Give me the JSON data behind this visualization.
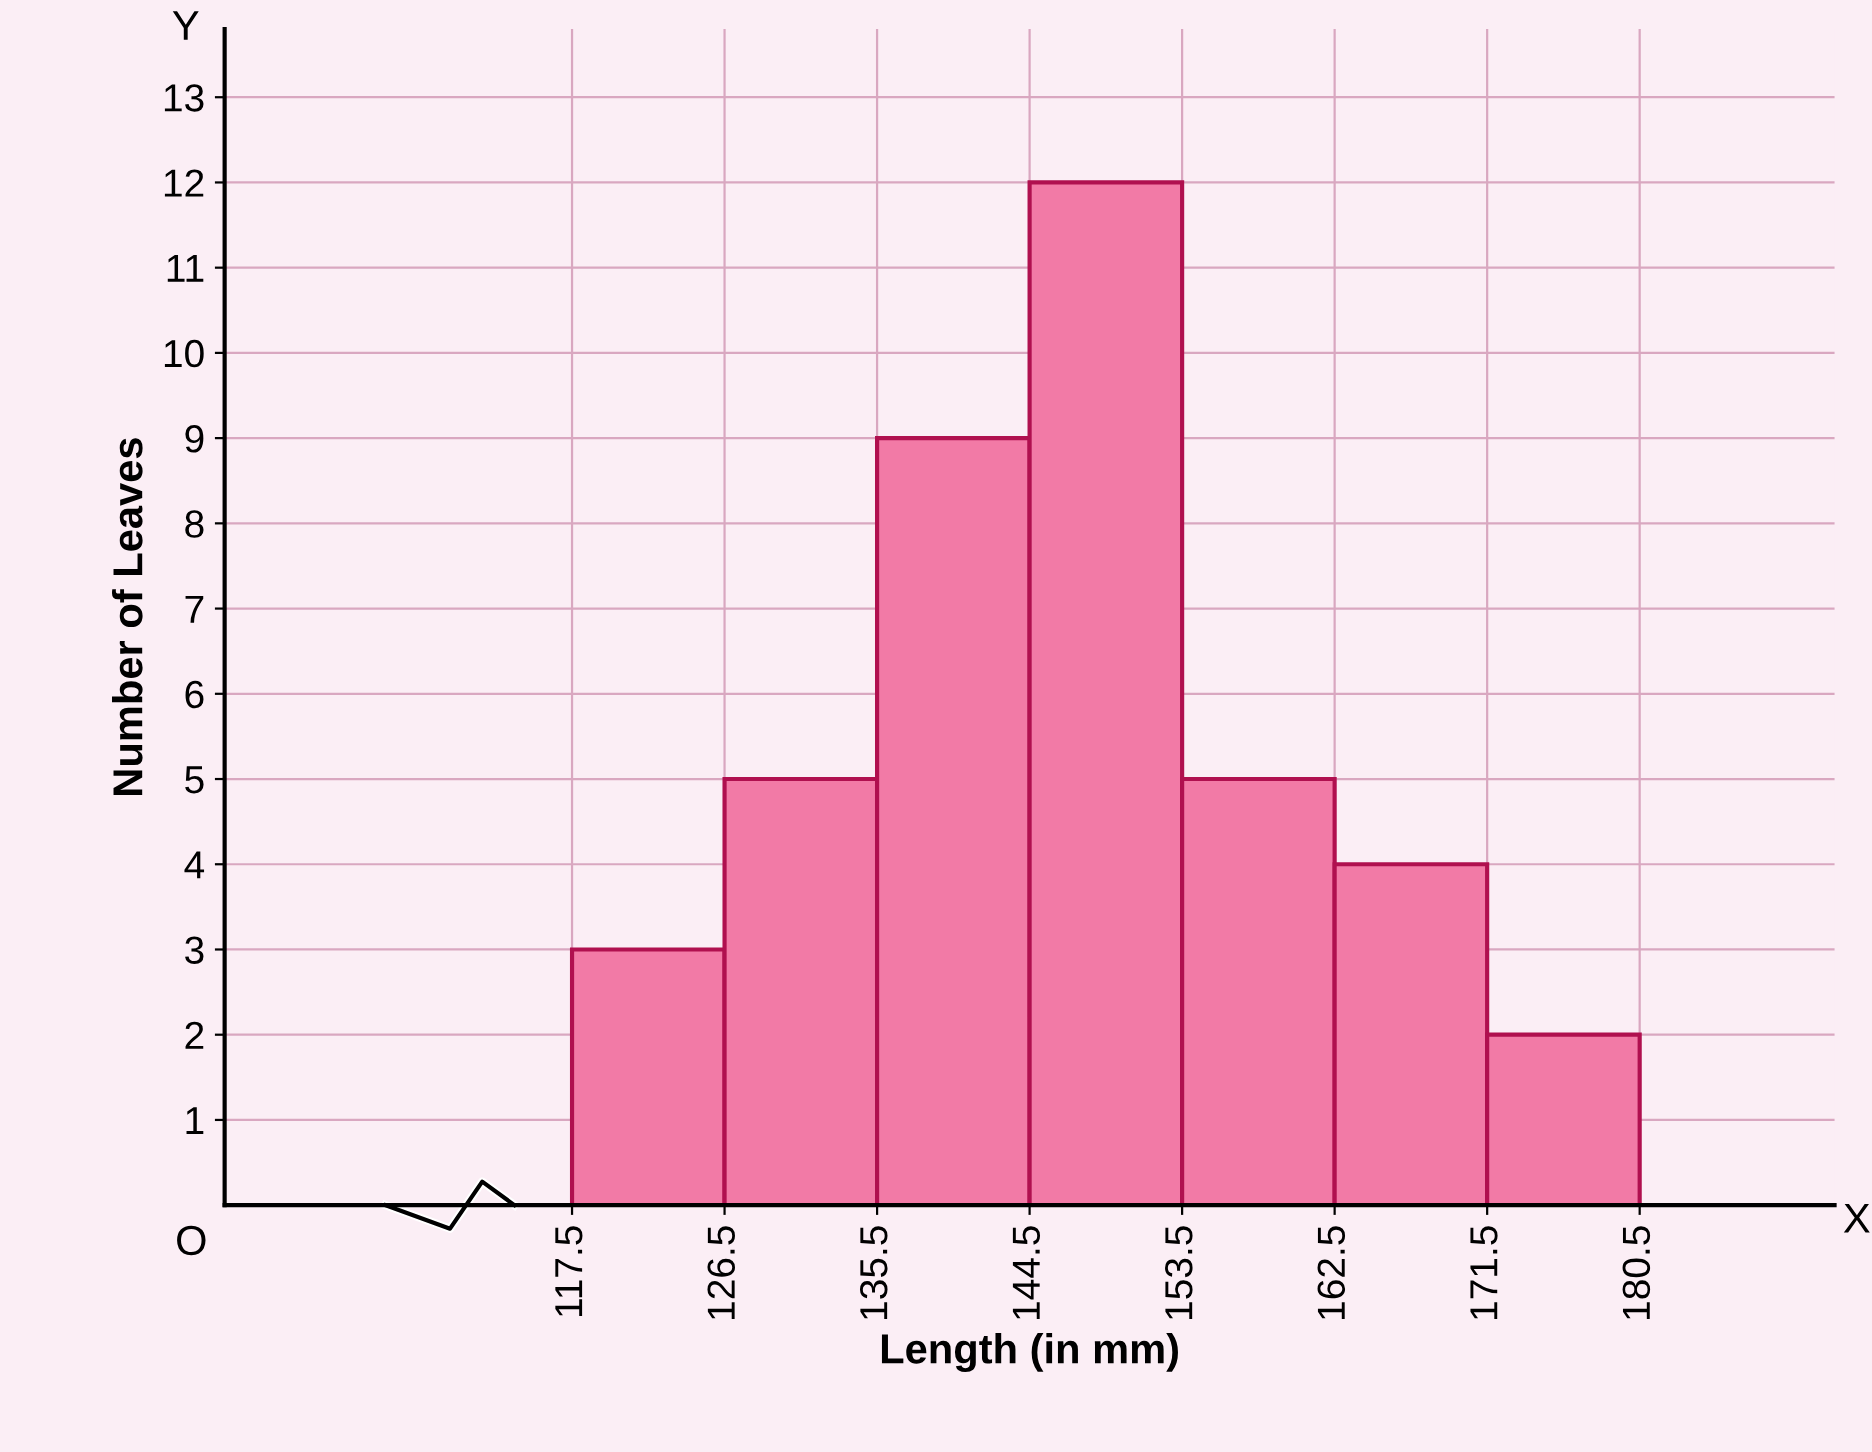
{
  "chart_data": {
    "type": "histogram",
    "xlabel": "Length (in mm)",
    "ylabel": "Number of Leaves",
    "bins": [
      117.5,
      126.5,
      135.5,
      144.5,
      153.5,
      162.5,
      171.5,
      180.5
    ],
    "values": [
      3,
      5,
      9,
      12,
      5,
      4,
      2
    ],
    "color": "#f27aa6",
    "xlim": [
      97,
      192
    ],
    "xticks": [
      117.5,
      126.5,
      135.5,
      144.5,
      153.5,
      162.5,
      171.5,
      180.5
    ],
    "ylim": [
      0,
      13.8
    ],
    "yticks": [
      1,
      2,
      3,
      4,
      5,
      6,
      7,
      8,
      9,
      10,
      11,
      12,
      13
    ],
    "grid": true,
    "annotations": [
      "O",
      "X",
      "Y"
    ]
  }
}
